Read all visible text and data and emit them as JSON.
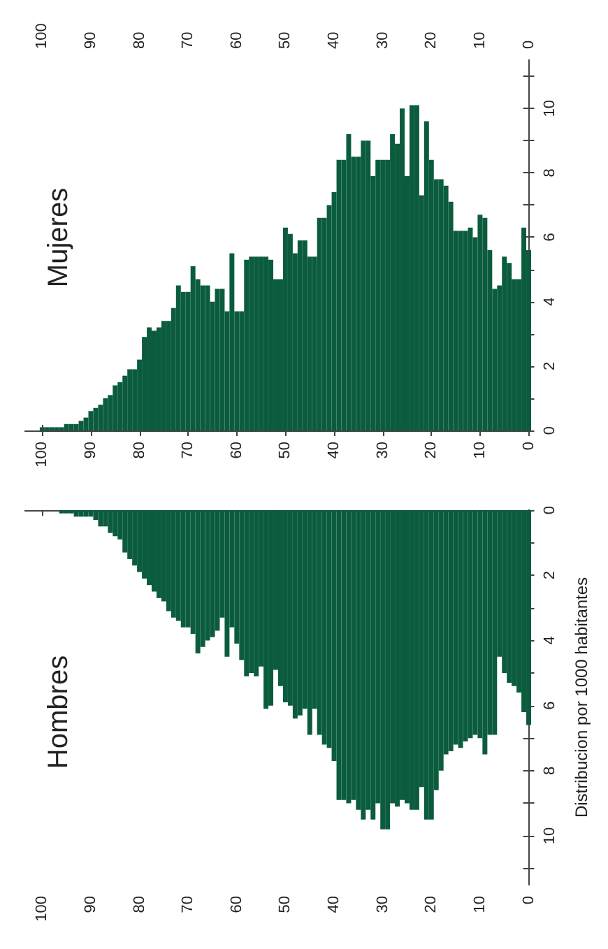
{
  "chart_data": [
    {
      "type": "bar",
      "title": "Mujeres",
      "color": "#0b5c3d",
      "x": [
        0,
        1,
        2,
        3,
        4,
        5,
        6,
        7,
        8,
        9,
        10,
        11,
        12,
        13,
        14,
        15,
        16,
        17,
        18,
        19,
        20,
        21,
        22,
        23,
        24,
        25,
        26,
        27,
        28,
        29,
        30,
        31,
        32,
        33,
        34,
        35,
        36,
        37,
        38,
        39,
        40,
        41,
        42,
        43,
        44,
        45,
        46,
        47,
        48,
        49,
        50,
        51,
        52,
        53,
        54,
        55,
        56,
        57,
        58,
        59,
        60,
        61,
        62,
        63,
        64,
        65,
        66,
        67,
        68,
        69,
        70,
        71,
        72,
        73,
        74,
        75,
        76,
        77,
        78,
        79,
        80,
        81,
        82,
        83,
        84,
        85,
        86,
        87,
        88,
        89,
        90,
        91,
        92,
        93,
        94,
        95,
        96,
        97,
        98,
        99,
        100
      ],
      "values": [
        5.6,
        6.3,
        4.7,
        4.7,
        5.2,
        5.4,
        4.5,
        4.4,
        5.6,
        6.6,
        6.7,
        6.0,
        6.3,
        6.2,
        6.2,
        6.2,
        7.1,
        7.6,
        7.8,
        7.8,
        8.4,
        9.6,
        7.3,
        10.1,
        10.1,
        7.9,
        10.0,
        8.9,
        9.2,
        8.4,
        8.4,
        8.4,
        7.9,
        9.0,
        9.0,
        8.5,
        8.5,
        9.2,
        8.4,
        8.4,
        7.4,
        7.0,
        6.6,
        6.6,
        5.4,
        5.4,
        5.9,
        5.9,
        5.5,
        6.1,
        6.3,
        4.7,
        4.7,
        5.3,
        5.4,
        5.4,
        5.4,
        5.4,
        5.3,
        3.7,
        3.7,
        5.5,
        3.7,
        4.4,
        4.4,
        4.0,
        4.5,
        4.5,
        4.7,
        5.1,
        4.3,
        4.3,
        4.5,
        3.8,
        3.4,
        3.4,
        3.2,
        3.1,
        3.2,
        2.9,
        2.2,
        1.9,
        1.9,
        1.7,
        1.5,
        1.4,
        1.1,
        1.0,
        0.8,
        0.7,
        0.6,
        0.4,
        0.3,
        0.2,
        0.2,
        0.2,
        0.1,
        0.1,
        0.1,
        0.1,
        0.1
      ],
      "xlim": [
        103.5,
        -0.5
      ],
      "xticks": [
        0,
        10,
        20,
        30,
        40,
        50,
        60,
        70,
        80,
        90,
        100
      ],
      "x2lim": [
        103.5,
        -0.5
      ],
      "x2ticks": [
        0,
        10,
        20,
        30,
        40,
        50,
        60,
        70,
        80,
        90,
        100
      ],
      "ylim": [
        0,
        11.5
      ],
      "yticks": [
        0,
        {
          "value": 1,
          "label": null
        },
        2,
        {
          "value": 3,
          "label": null
        },
        4,
        {
          "value": 5,
          "label": null
        },
        6,
        {
          "value": 7,
          "label": null
        },
        8,
        {
          "value": 9,
          "label": null
        },
        10,
        {
          "value": 11,
          "label": null
        }
      ]
    },
    {
      "type": "bar",
      "title": "Hombres",
      "ylabel": "Distribucion por 1000 habitantes",
      "color": "#0b5c3d",
      "x": [
        0,
        1,
        2,
        3,
        4,
        5,
        6,
        7,
        8,
        9,
        10,
        11,
        12,
        13,
        14,
        15,
        16,
        17,
        18,
        19,
        20,
        21,
        22,
        23,
        24,
        25,
        26,
        27,
        28,
        29,
        30,
        31,
        32,
        33,
        34,
        35,
        36,
        37,
        38,
        39,
        40,
        41,
        42,
        43,
        44,
        45,
        46,
        47,
        48,
        49,
        50,
        51,
        52,
        53,
        54,
        55,
        56,
        57,
        58,
        59,
        60,
        61,
        62,
        63,
        64,
        65,
        66,
        67,
        68,
        69,
        70,
        71,
        72,
        73,
        74,
        75,
        76,
        77,
        78,
        79,
        80,
        81,
        82,
        83,
        84,
        85,
        86,
        87,
        88,
        89,
        90,
        91,
        92,
        93,
        94,
        95,
        96,
        97,
        98,
        99,
        100
      ],
      "values": [
        6.6,
        6.2,
        5.6,
        5.4,
        5.3,
        5.0,
        4.5,
        6.9,
        6.9,
        7.5,
        7.0,
        6.9,
        7.0,
        7.1,
        7.3,
        7.2,
        7.4,
        7.5,
        8.0,
        8.6,
        9.5,
        9.5,
        8.5,
        9.2,
        9.2,
        9.0,
        8.9,
        9.1,
        9.0,
        9.8,
        9.8,
        9.0,
        9.5,
        9.2,
        9.5,
        9.2,
        8.9,
        9.0,
        8.9,
        8.9,
        7.7,
        7.3,
        7.2,
        6.9,
        6.1,
        6.9,
        6.1,
        6.3,
        6.4,
        6.0,
        5.9,
        5.4,
        4.9,
        6.0,
        6.1,
        4.8,
        5.1,
        5.0,
        5.1,
        4.6,
        4.1,
        3.6,
        4.5,
        3.3,
        3.7,
        3.9,
        4.0,
        4.2,
        4.4,
        3.8,
        3.6,
        3.6,
        3.4,
        3.3,
        3.1,
        2.8,
        2.7,
        2.5,
        2.3,
        2.1,
        1.9,
        1.7,
        1.5,
        1.3,
        0.9,
        0.8,
        0.7,
        0.5,
        0.5,
        0.3,
        0.2,
        0.2,
        0.2,
        0.2,
        0.1,
        0.1,
        0.1,
        0,
        0,
        0,
        0
      ],
      "xlim": [
        103.5,
        -0.5
      ],
      "xticks": [
        0,
        10,
        20,
        30,
        40,
        50,
        60,
        70,
        80,
        90,
        100
      ],
      "ylim": [
        11.5,
        0
      ],
      "yticks": [
        0,
        {
          "value": 1,
          "label": null
        },
        2,
        {
          "value": 3,
          "label": null
        },
        4,
        {
          "value": 5,
          "label": null
        },
        6,
        {
          "value": 7,
          "label": null
        },
        8,
        {
          "value": 9,
          "label": null
        },
        10,
        {
          "value": 11,
          "label": null
        }
      ]
    }
  ]
}
